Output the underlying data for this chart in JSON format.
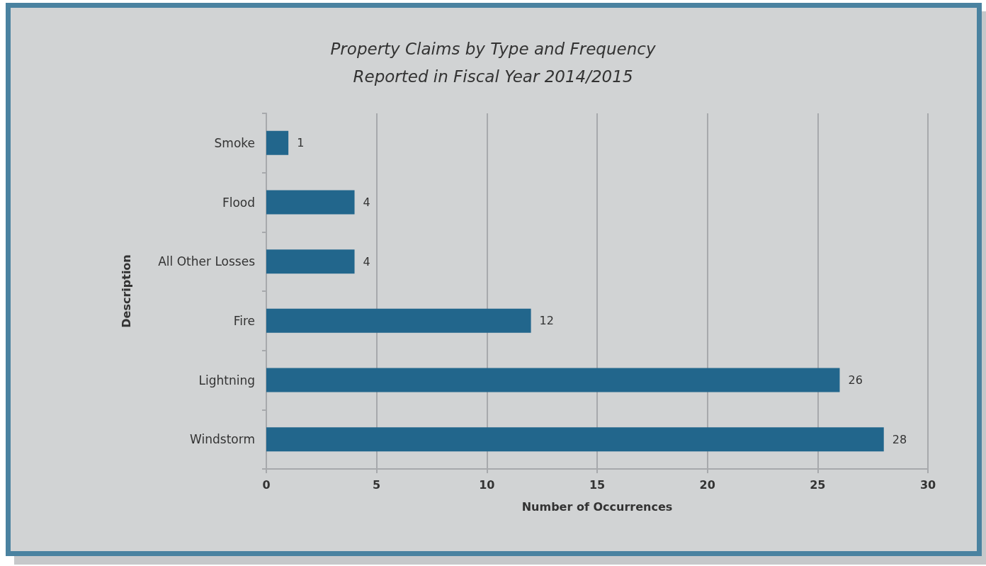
{
  "chart_data": {
    "type": "bar",
    "orientation": "horizontal",
    "title": "Property Claims by Type and Frequency",
    "subtitle": "Reported in Fiscal Year 2014/2015",
    "xlabel": "Number of Occurrences",
    "ylabel": "Description",
    "categories": [
      "Smoke",
      "Flood",
      "All Other Losses",
      "Fire",
      "Lightning",
      "Windstorm"
    ],
    "values": [
      1,
      4,
      4,
      12,
      26,
      28
    ],
    "color": "#22668c",
    "data_labels": true,
    "xlim": [
      0,
      30
    ],
    "xticks": [
      0,
      5,
      10,
      15,
      20,
      25,
      30
    ],
    "grid": "x"
  }
}
